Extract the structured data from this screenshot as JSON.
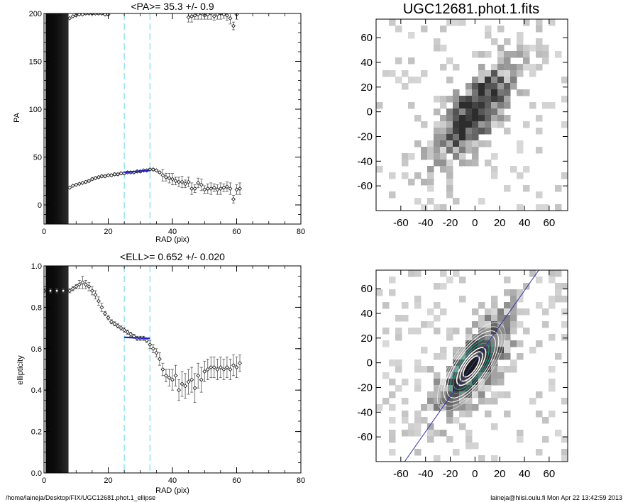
{
  "chart_data": [
    {
      "id": "pa",
      "type": "scatter",
      "title": "<PA>=  35.3 +/-   0.9",
      "xlabel": "RAD (pix)",
      "ylabel": "PA",
      "xlim": [
        0,
        80
      ],
      "ylim": [
        -20,
        200
      ],
      "xticks": [
        "0",
        "20",
        "40",
        "60",
        "80"
      ],
      "yticks": [
        "0",
        "50",
        "100",
        "150",
        "200"
      ],
      "ytick_values": [
        0,
        50,
        100,
        150,
        200
      ],
      "xtick_values": [
        0,
        20,
        40,
        60,
        80
      ],
      "dark_band_x": [
        0.5,
        7.5
      ],
      "fit_range_x": [
        25,
        33
      ],
      "fit_line": {
        "x": [
          25,
          33
        ],
        "y": [
          34,
          36
        ],
        "color": "#2222cc"
      },
      "series": [
        {
          "x": [
            8,
            9,
            10,
            11,
            12,
            13,
            14,
            15,
            16,
            17,
            18,
            19,
            20,
            21,
            22,
            23,
            24,
            25,
            26,
            27,
            28,
            29,
            30,
            31,
            32,
            33,
            34,
            35,
            36,
            37,
            38,
            39,
            40,
            41,
            42,
            43,
            44,
            45,
            46,
            47,
            48,
            49,
            50,
            51,
            52,
            53,
            54,
            55,
            56,
            57,
            58,
            59,
            60,
            61
          ],
          "y": [
            18,
            20,
            21,
            22,
            23,
            24,
            25,
            27,
            28,
            29,
            30,
            30,
            31,
            31,
            32,
            32,
            33,
            33,
            34,
            34,
            34,
            35,
            35,
            36,
            36,
            37,
            37,
            36,
            34,
            31,
            29,
            28,
            27,
            25,
            24,
            24,
            22,
            24,
            17,
            17,
            23,
            21,
            16,
            17,
            17,
            18,
            16,
            17,
            18,
            19,
            17,
            6,
            16,
            17
          ]
        },
        {
          "x": [
            8,
            9,
            10,
            11,
            12,
            13,
            14,
            15,
            16,
            17,
            18,
            19,
            20,
            45,
            46,
            47,
            48,
            49,
            50,
            51,
            52,
            53,
            54,
            55,
            56,
            57,
            58,
            59,
            60
          ],
          "y": [
            195,
            197,
            198,
            199,
            199,
            200,
            200,
            200,
            200,
            200,
            200,
            199,
            199,
            196,
            197,
            198,
            199,
            200,
            198,
            199,
            200,
            197,
            199,
            200,
            199,
            198,
            195,
            187,
            199
          ]
        }
      ]
    },
    {
      "id": "ell",
      "type": "scatter",
      "title": "<ELL>= 0.652 +/-  0.020",
      "xlabel": "RAD (pix)",
      "ylabel": "ellipticity",
      "xlim": [
        0,
        80
      ],
      "ylim": [
        0.0,
        1.0
      ],
      "xticks": [
        "0",
        "20",
        "40",
        "60",
        "80"
      ],
      "yticks": [
        "0.0",
        "0.2",
        "0.4",
        "0.6",
        "0.8",
        "1.0"
      ],
      "ytick_values": [
        0.0,
        0.2,
        0.4,
        0.6,
        0.8,
        1.0
      ],
      "xtick_values": [
        0,
        20,
        40,
        60,
        80
      ],
      "dark_band_x": [
        0.5,
        7.5
      ],
      "fit_range_x": [
        25,
        33
      ],
      "fit_line": {
        "x": [
          25,
          33
        ],
        "y": [
          0.655,
          0.65
        ],
        "color": "#2222cc"
      },
      "series": [
        {
          "x": [
            0,
            2,
            4,
            6,
            8,
            9,
            10,
            11,
            12,
            13,
            14,
            15,
            16,
            17,
            18,
            19,
            20,
            21,
            22,
            23,
            24,
            25,
            26,
            27,
            28,
            29,
            30,
            31,
            32,
            33,
            34,
            35,
            36,
            37,
            38,
            39,
            40,
            41,
            42,
            43,
            44,
            45,
            46,
            47,
            48,
            49,
            50,
            51,
            52,
            53,
            54,
            55,
            56,
            57,
            58,
            59,
            60,
            61
          ],
          "y": [
            0.88,
            0.88,
            0.88,
            0.88,
            0.88,
            0.89,
            0.9,
            0.91,
            0.92,
            0.91,
            0.9,
            0.88,
            0.86,
            0.83,
            0.8,
            0.77,
            0.75,
            0.73,
            0.72,
            0.71,
            0.7,
            0.69,
            0.68,
            0.67,
            0.66,
            0.65,
            0.65,
            0.65,
            0.64,
            0.62,
            0.6,
            0.58,
            0.55,
            0.5,
            0.47,
            0.46,
            0.45,
            0.47,
            0.4,
            0.43,
            0.42,
            0.44,
            0.45,
            0.41,
            0.47,
            0.45,
            0.49,
            0.5,
            0.51,
            0.51,
            0.5,
            0.51,
            0.5,
            0.51,
            0.5,
            0.52,
            0.51,
            0.53
          ],
          "err": [
            0.01,
            0.01,
            0.01,
            0.01,
            0.01,
            0.01,
            0.01,
            0.02,
            0.03,
            0.02,
            0.02,
            0.02,
            0.02,
            0.02,
            0.02,
            0.01,
            0.01,
            0.01,
            0.01,
            0.01,
            0.01,
            0.01,
            0.01,
            0.01,
            0.01,
            0.01,
            0.01,
            0.01,
            0.01,
            0.02,
            0.02,
            0.02,
            0.03,
            0.03,
            0.03,
            0.04,
            0.05,
            0.05,
            0.05,
            0.06,
            0.06,
            0.06,
            0.06,
            0.07,
            0.06,
            0.06,
            0.05,
            0.05,
            0.05,
            0.05,
            0.05,
            0.05,
            0.05,
            0.05,
            0.05,
            0.05,
            0.05,
            0.04
          ]
        }
      ]
    },
    {
      "id": "img1",
      "type": "heatmap",
      "title": "UGC12681.phot.1.fits",
      "xlim": [
        -80,
        75
      ],
      "ylim": [
        -80,
        75
      ],
      "xticks": [
        "-60",
        "-40",
        "-20",
        "0",
        "20",
        "40",
        "60"
      ],
      "yticks": [
        "-60",
        "-40",
        "-20",
        "0",
        "20",
        "40",
        "60"
      ],
      "tick_values": [
        -60,
        -40,
        -20,
        0,
        20,
        40,
        60
      ]
    },
    {
      "id": "img2",
      "type": "heatmap",
      "title": "",
      "xlim": [
        -80,
        75
      ],
      "ylim": [
        -80,
        75
      ],
      "xticks": [
        "-60",
        "-40",
        "-20",
        "0",
        "20",
        "40",
        "60"
      ],
      "yticks": [
        "-60",
        "-40",
        "-20",
        "0",
        "20",
        "40",
        "60"
      ],
      "tick_values": [
        -60,
        -40,
        -20,
        0,
        20,
        40,
        60
      ],
      "major_axis_color": "#3333aa",
      "contour_colors": [
        "#ffffff",
        "#2aa89a"
      ]
    }
  ],
  "footer": {
    "path": "/home/laineja/Desktop/FIX/UGC12681.phot.1_ellipse",
    "stamp": "laineja@hiisi.oulu.fi  Mon Apr 22 13:42:59 2013"
  },
  "colors": {
    "fit_guide": "#7fe4ec",
    "fit_line": "#2222cc",
    "band": "#0a0a0a",
    "marker": "#222222"
  }
}
